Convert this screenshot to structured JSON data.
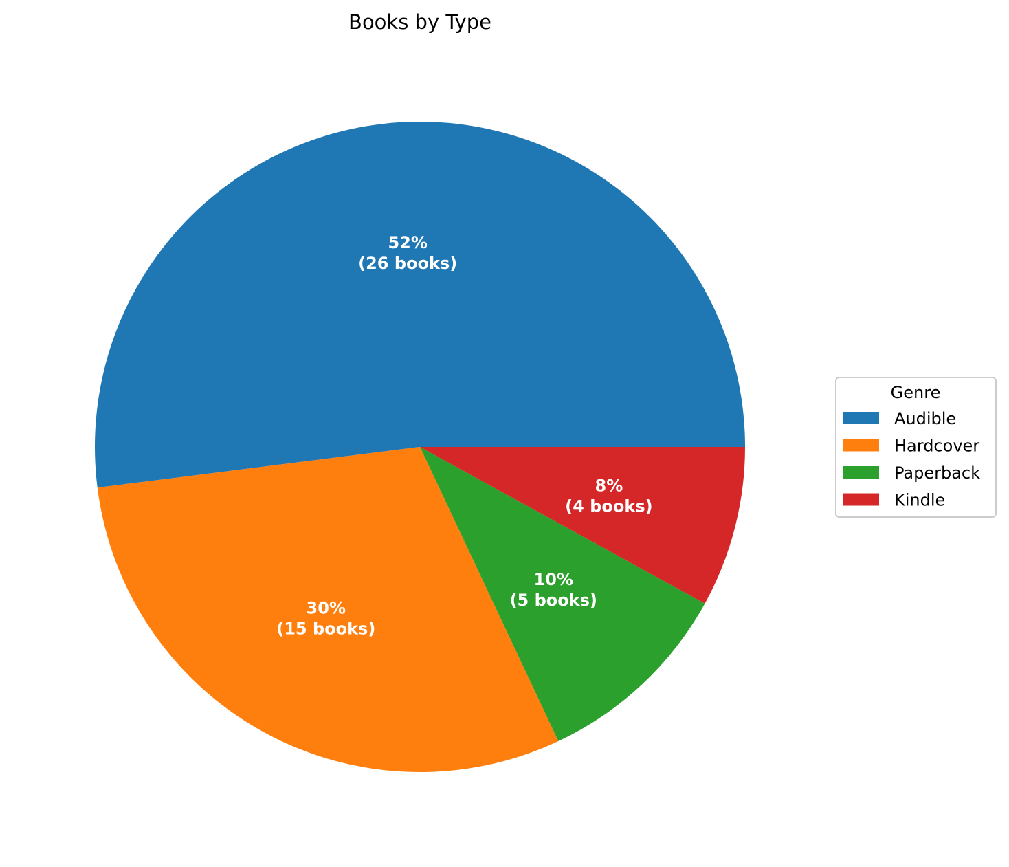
{
  "chart_data": {
    "type": "pie",
    "title": "Books by Type",
    "categories": [
      "Audible",
      "Hardcover",
      "Paperback",
      "Kindle"
    ],
    "values": [
      26,
      15,
      5,
      4
    ],
    "percent_labels": [
      "52%",
      "30%",
      "10%",
      "8%"
    ],
    "count_labels": [
      "(26 books)",
      "(15 books)",
      "(5 books)",
      "(4 books)"
    ],
    "colors": [
      "#1f77b4",
      "#ff7f0e",
      "#2ca02c",
      "#d62728"
    ],
    "start_angle_deg": 0,
    "direction": "counterclockwise",
    "legend": {
      "title": "Genre",
      "placement": "center-right"
    }
  }
}
